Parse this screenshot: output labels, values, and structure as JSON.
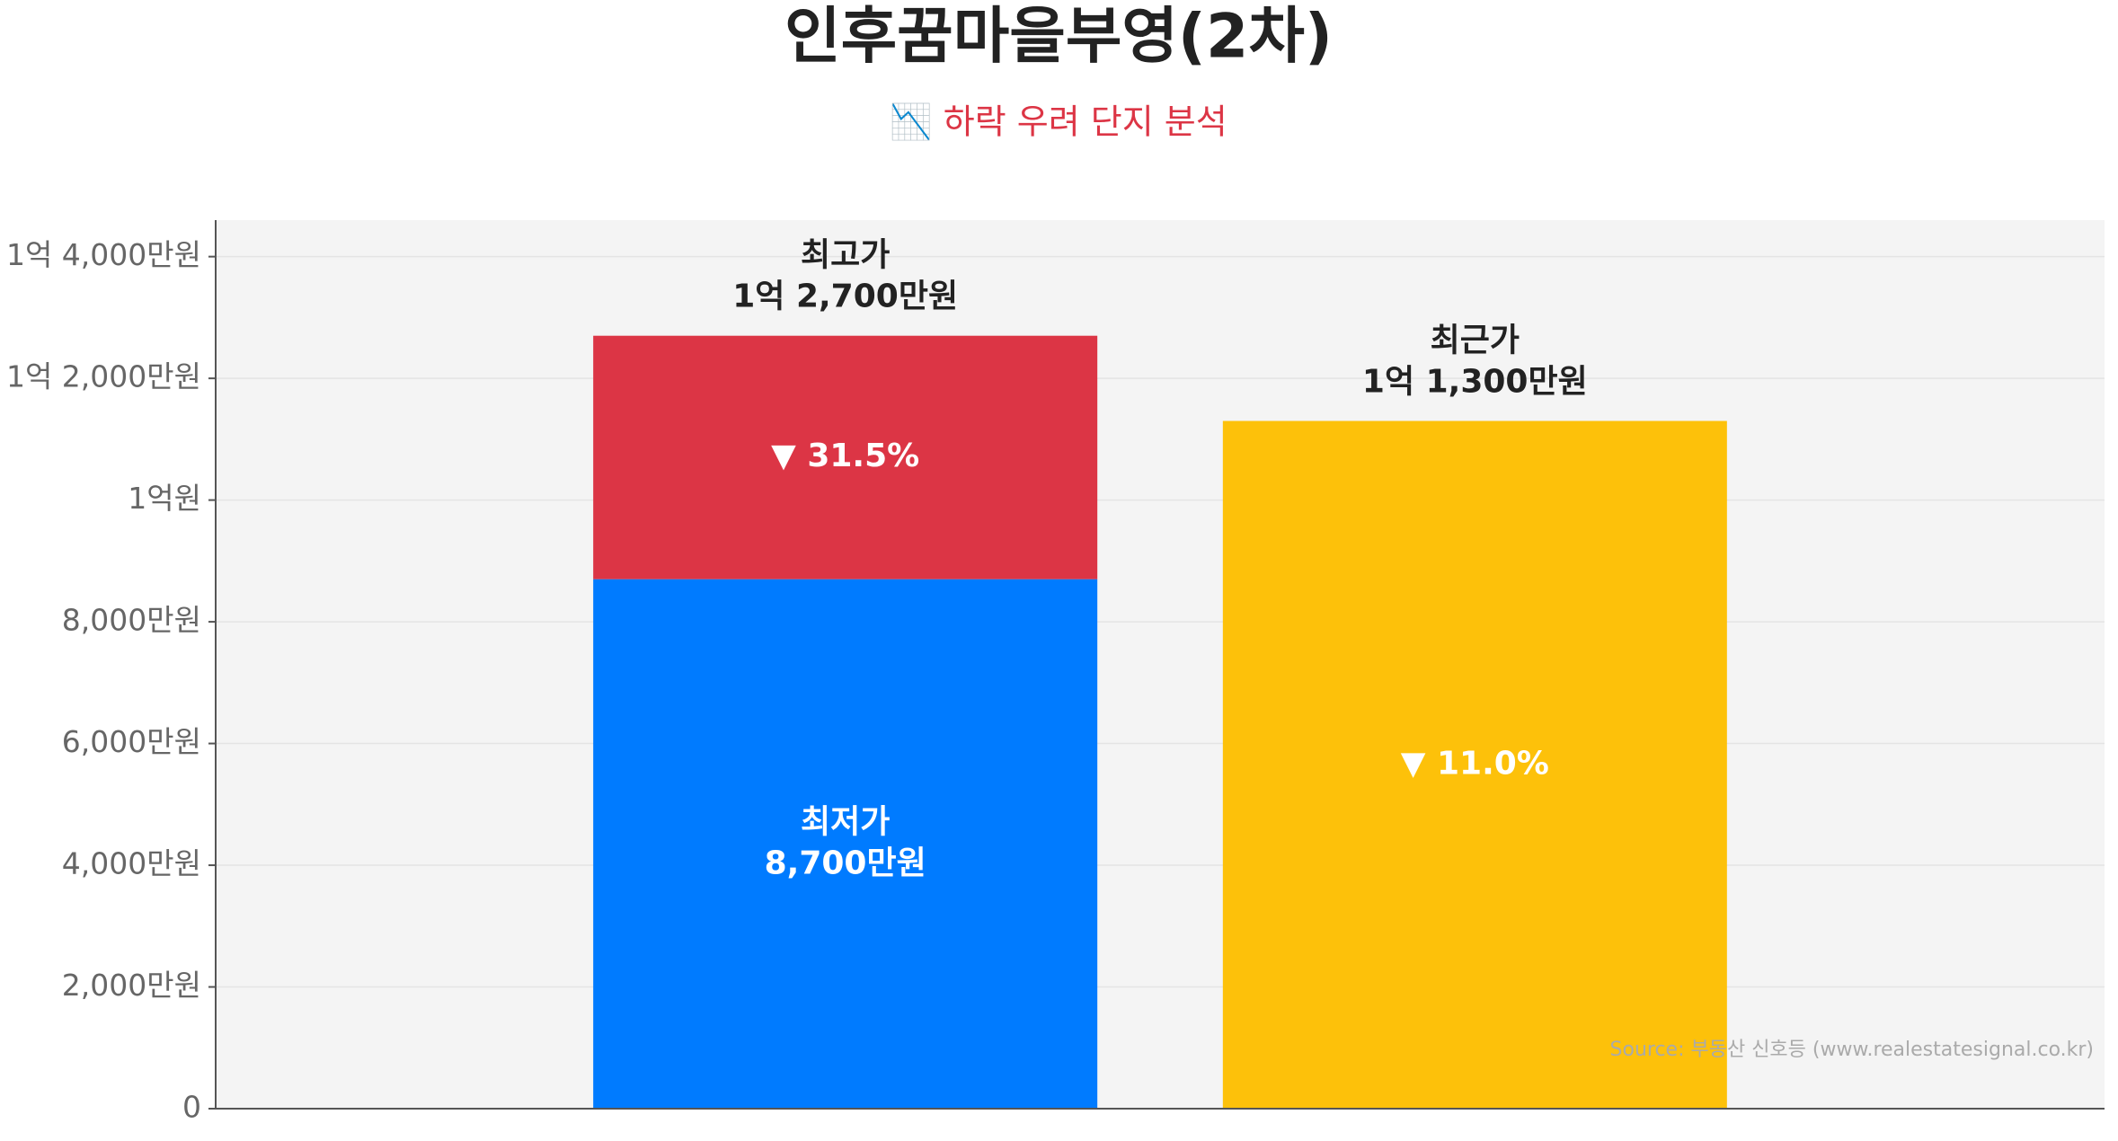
{
  "chart_data": {
    "type": "bar",
    "title": "인후꿈마을부영(2차)",
    "subtitle": "📉 하락 우려 단지 분석",
    "source": "Source: 부동산 신호등 (www.realestatesignal.co.kr)",
    "ylim": [
      0,
      14600
    ],
    "yticks": [
      {
        "value": 0,
        "label": "0"
      },
      {
        "value": 2000,
        "label": "2,000만원"
      },
      {
        "value": 4000,
        "label": "4,000만원"
      },
      {
        "value": 6000,
        "label": "6,000만원"
      },
      {
        "value": 8000,
        "label": "8,000만원"
      },
      {
        "value": 10000,
        "label": "1억원"
      },
      {
        "value": 12000,
        "label": "1억 2,000만원"
      },
      {
        "value": 14000,
        "label": "1억 4,000만원"
      }
    ],
    "grid": true,
    "bars": [
      {
        "top_label": [
          "최고가",
          "1억 2,700만원"
        ],
        "segments": [
          {
            "value": 8700,
            "color": "#007bff",
            "label": [
              "최저가",
              "8,700만원"
            ]
          },
          {
            "value": 4000,
            "color": "#dc3545",
            "label": [
              "▼ 31.5%"
            ]
          }
        ]
      },
      {
        "top_label": [
          "최근가",
          "1억 1,300만원"
        ],
        "segments": [
          {
            "value": 11300,
            "color": "#fdc10a",
            "label": [
              "▼ 11.0%"
            ]
          }
        ]
      }
    ]
  }
}
